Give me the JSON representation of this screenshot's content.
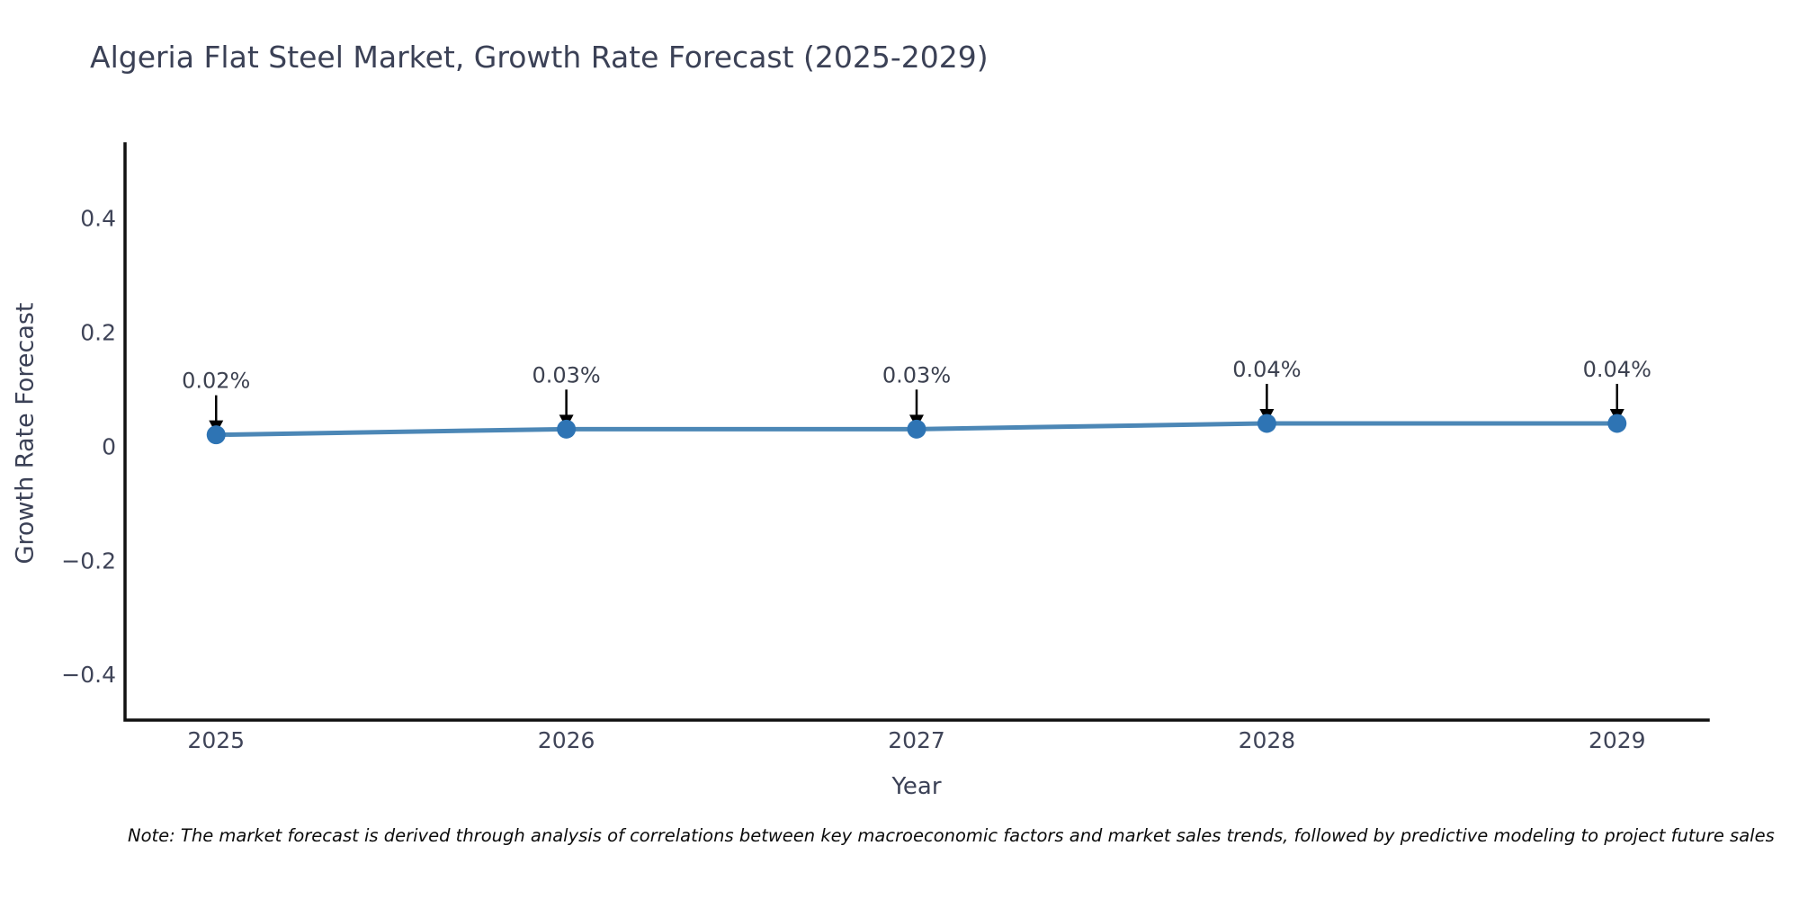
{
  "header": {
    "title": "Algeria Flat Steel Market, Growth Rate Forecast (2025-2029)"
  },
  "footnote": {
    "text": "Note: The market forecast is derived through analysis of correlations between key macroeconomic factors and market sales trends, followed by predictive modeling to project future sales"
  },
  "chart_data": {
    "type": "line",
    "title": "Algeria Flat Steel Market, Growth Rate Forecast (2025-2029)",
    "xlabel": "Year",
    "ylabel": "Growth Rate Forecast",
    "categories": [
      "2025",
      "2026",
      "2027",
      "2028",
      "2029"
    ],
    "series": [
      {
        "name": "Growth Rate Forecast",
        "values": [
          0.02,
          0.03,
          0.03,
          0.04,
          0.04
        ],
        "point_labels": [
          "0.02%",
          "0.03%",
          "0.03%",
          "0.04%",
          "0.04%"
        ]
      }
    ],
    "yticks": [
      0.4,
      0.2,
      0,
      -0.2,
      -0.4
    ],
    "ytick_labels": [
      "0.4",
      "0.2",
      "0",
      "−0.2",
      "−0.4"
    ],
    "ylim": [
      -0.48,
      0.53
    ],
    "grid": false,
    "legend": false,
    "annotations": "value labels with downward black arrows above each point",
    "colors": {
      "line": "#4c87b6",
      "marker": "#2e74b4",
      "axis": "#111111",
      "arrow": "#000000"
    }
  }
}
